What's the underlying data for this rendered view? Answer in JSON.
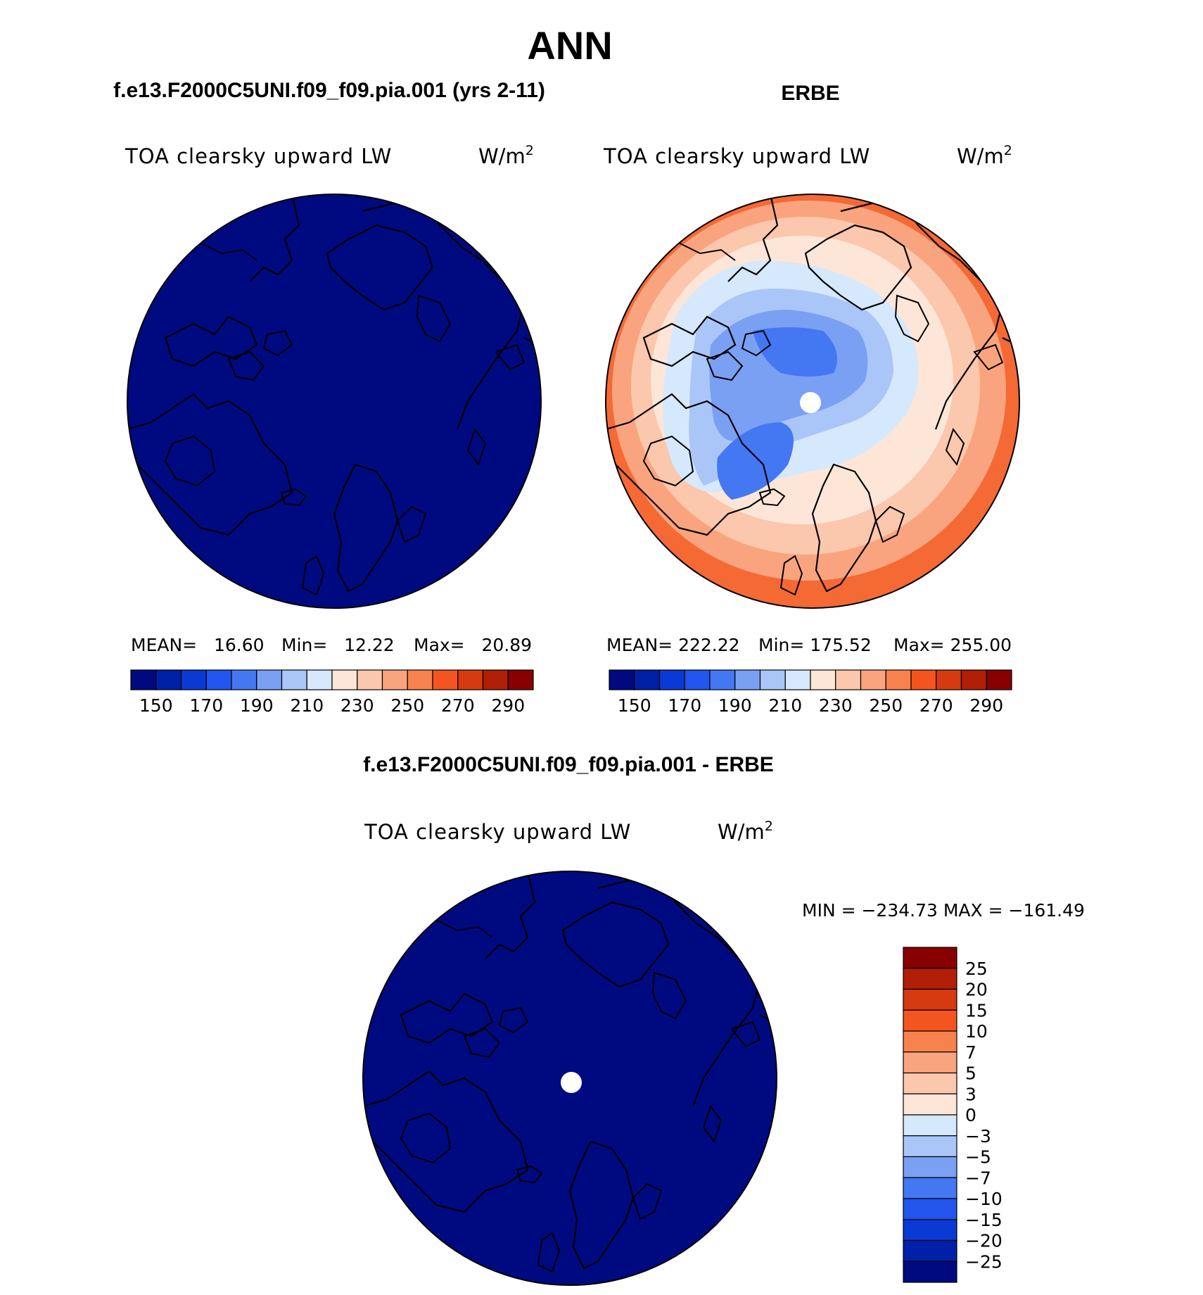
{
  "main_title": "ANN",
  "panels": [
    {
      "heading": "f.e13.F2000C5UNI.f09_f09.pia.001 (yrs 2-11)",
      "variable": "TOA clearsky upward LW",
      "units_base": "W/m",
      "units_sup": "2",
      "stats": {
        "mean": "MEAN=   16.60",
        "min": "Min=   12.22",
        "max": "Max=   20.89"
      },
      "field": "uniform-low"
    },
    {
      "heading": "ERBE",
      "variable": "TOA clearsky upward LW",
      "units_base": "W/m",
      "units_sup": "2",
      "stats": {
        "mean": "MEAN= 222.22",
        "min": "Min= 175.52",
        "max": "Max= 255.00"
      },
      "field": "observed"
    },
    {
      "heading": "f.e13.F2000C5UNI.f09_f09.pia.001 - ERBE",
      "variable": "TOA clearsky upward LW",
      "units_base": "W/m",
      "units_sup": "2",
      "minmax": "MIN = −234.73 MAX = −161.49",
      "field": "uniform-low"
    }
  ],
  "colorbar_horizontal": {
    "colors": [
      "#000a80",
      "#0020a8",
      "#0a3ad4",
      "#2255ee",
      "#4477f2",
      "#7aa0f4",
      "#aac6f8",
      "#d6e8fb",
      "#fde6d8",
      "#fbc7ad",
      "#f9a47e",
      "#f7824e",
      "#f45520",
      "#d63a10",
      "#b01f06",
      "#880000"
    ],
    "labels": [
      "150",
      "170",
      "190",
      "210",
      "230",
      "250",
      "270",
      "290"
    ]
  },
  "colorbar_vertical": {
    "colors": [
      "#880000",
      "#b01f06",
      "#d63a10",
      "#f45520",
      "#f7824e",
      "#f9a47e",
      "#fbc7ad",
      "#fde6d8",
      "#d6e8fb",
      "#aac6f8",
      "#7aa0f4",
      "#4477f2",
      "#2255ee",
      "#0a3ad4",
      "#0020a8",
      "#000a80"
    ],
    "labels": [
      "25",
      "20",
      "15",
      "10",
      "7",
      "5",
      "3",
      "0",
      "−3",
      "−5",
      "−7",
      "−10",
      "−15",
      "−20",
      "−25"
    ]
  }
}
